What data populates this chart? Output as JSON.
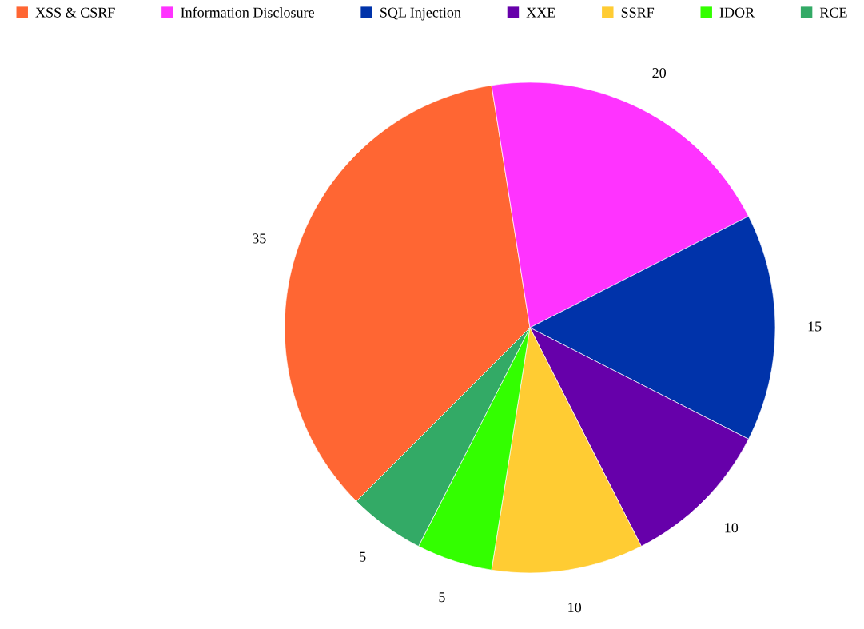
{
  "chart_data": {
    "type": "pie",
    "categories": [
      "XSS & CSRF",
      "Information Disclosure",
      "SQL Injection",
      "XXE",
      "SSRF",
      "IDOR",
      "RCE"
    ],
    "values": [
      35,
      20,
      15,
      10,
      10,
      5,
      5
    ],
    "colors": [
      "#ff6633",
      "#ff33ff",
      "#0033aa",
      "#6600aa",
      "#ffcc33",
      "#33ff00",
      "#33aa66"
    ],
    "data_labels": true,
    "legend": "top"
  }
}
